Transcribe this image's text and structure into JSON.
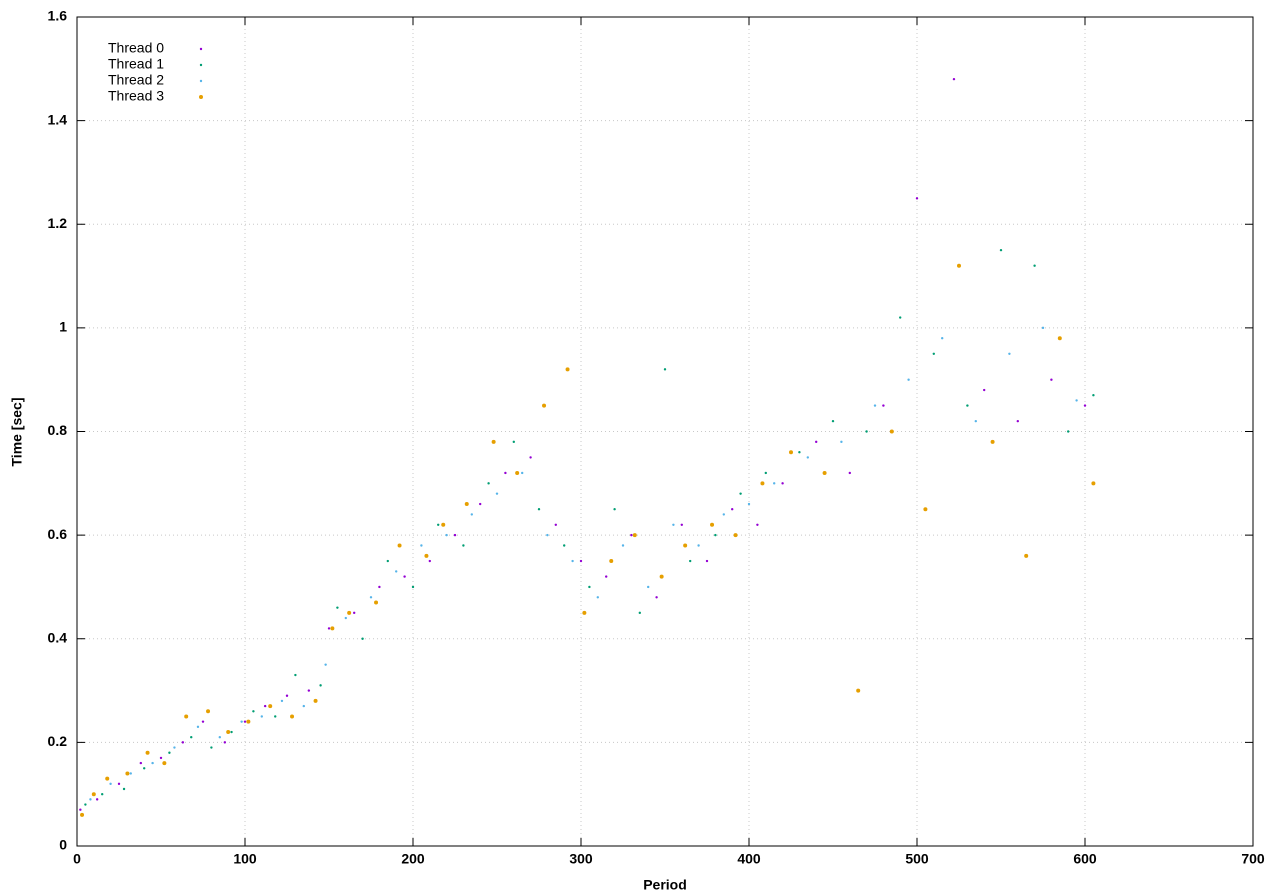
{
  "chart_data": {
    "type": "scatter",
    "x_label": "Period",
    "y_label": "Time [sec]",
    "xlim": [
      0,
      700
    ],
    "xticks": [
      0,
      100,
      200,
      300,
      400,
      500,
      600,
      700
    ],
    "ylim": [
      0,
      1.6
    ],
    "yticks": [
      0,
      0.2,
      0.4,
      0.6,
      0.8,
      1,
      1.2,
      1.4,
      1.6
    ],
    "grid": true,
    "legend": "top-left",
    "series": [
      {
        "name": "Thread 0",
        "color": "#9400d3",
        "x": [
          2,
          12,
          25,
          38,
          50,
          63,
          75,
          88,
          100,
          112,
          125,
          138,
          150,
          165,
          180,
          195,
          210,
          225,
          240,
          255,
          270,
          285,
          300,
          315,
          330,
          345,
          360,
          375,
          390,
          405,
          420,
          440,
          460,
          480,
          500,
          522,
          540,
          560,
          580,
          600
        ],
        "values": [
          0.07,
          0.09,
          0.12,
          0.16,
          0.17,
          0.2,
          0.24,
          0.2,
          0.24,
          0.27,
          0.29,
          0.3,
          0.42,
          0.45,
          0.5,
          0.52,
          0.55,
          0.6,
          0.66,
          0.72,
          0.75,
          0.62,
          0.55,
          0.52,
          0.6,
          0.48,
          0.62,
          0.55,
          0.65,
          0.62,
          0.7,
          0.78,
          0.72,
          0.85,
          1.25,
          1.48,
          0.88,
          0.82,
          0.9,
          0.85
        ]
      },
      {
        "name": "Thread 1",
        "color": "#009e73",
        "x": [
          5,
          15,
          28,
          40,
          55,
          68,
          80,
          92,
          105,
          118,
          130,
          145,
          155,
          170,
          185,
          200,
          215,
          230,
          245,
          260,
          275,
          290,
          305,
          320,
          335,
          350,
          365,
          380,
          395,
          410,
          430,
          450,
          470,
          490,
          510,
          530,
          550,
          570,
          590,
          605
        ],
        "values": [
          0.08,
          0.1,
          0.11,
          0.15,
          0.18,
          0.21,
          0.19,
          0.22,
          0.26,
          0.25,
          0.33,
          0.31,
          0.46,
          0.4,
          0.55,
          0.5,
          0.62,
          0.58,
          0.7,
          0.78,
          0.65,
          0.58,
          0.5,
          0.65,
          0.45,
          0.92,
          0.55,
          0.6,
          0.68,
          0.72,
          0.76,
          0.82,
          0.8,
          1.02,
          0.95,
          0.85,
          1.15,
          1.12,
          0.8,
          0.87
        ]
      },
      {
        "name": "Thread 2",
        "color": "#56b4e9",
        "x": [
          8,
          20,
          32,
          45,
          58,
          72,
          85,
          98,
          110,
          122,
          135,
          148,
          160,
          175,
          190,
          205,
          220,
          235,
          250,
          265,
          280,
          295,
          310,
          325,
          340,
          355,
          370,
          385,
          400,
          415,
          435,
          455,
          475,
          495,
          515,
          535,
          555,
          575,
          595
        ],
        "values": [
          0.09,
          0.12,
          0.14,
          0.16,
          0.19,
          0.23,
          0.21,
          0.24,
          0.25,
          0.28,
          0.27,
          0.35,
          0.44,
          0.48,
          0.53,
          0.58,
          0.6,
          0.64,
          0.68,
          0.72,
          0.6,
          0.55,
          0.48,
          0.58,
          0.5,
          0.62,
          0.58,
          0.64,
          0.66,
          0.7,
          0.75,
          0.78,
          0.85,
          0.9,
          0.98,
          0.82,
          0.95,
          1.0,
          0.86
        ]
      },
      {
        "name": "Thread 3",
        "color": "#e69f00",
        "x": [
          3,
          10,
          18,
          30,
          42,
          52,
          65,
          78,
          90,
          102,
          115,
          128,
          142,
          152,
          162,
          178,
          192,
          208,
          218,
          232,
          248,
          262,
          278,
          292,
          302,
          318,
          332,
          348,
          362,
          378,
          392,
          408,
          425,
          445,
          465,
          485,
          505,
          525,
          545,
          565,
          585,
          605
        ],
        "values": [
          0.06,
          0.1,
          0.13,
          0.14,
          0.18,
          0.16,
          0.25,
          0.26,
          0.22,
          0.24,
          0.27,
          0.25,
          0.28,
          0.42,
          0.45,
          0.47,
          0.58,
          0.56,
          0.62,
          0.66,
          0.78,
          0.72,
          0.85,
          0.92,
          0.45,
          0.55,
          0.6,
          0.52,
          0.58,
          0.62,
          0.6,
          0.7,
          0.76,
          0.72,
          0.3,
          0.8,
          0.65,
          1.12,
          0.78,
          0.56,
          0.98,
          0.7
        ]
      }
    ]
  }
}
